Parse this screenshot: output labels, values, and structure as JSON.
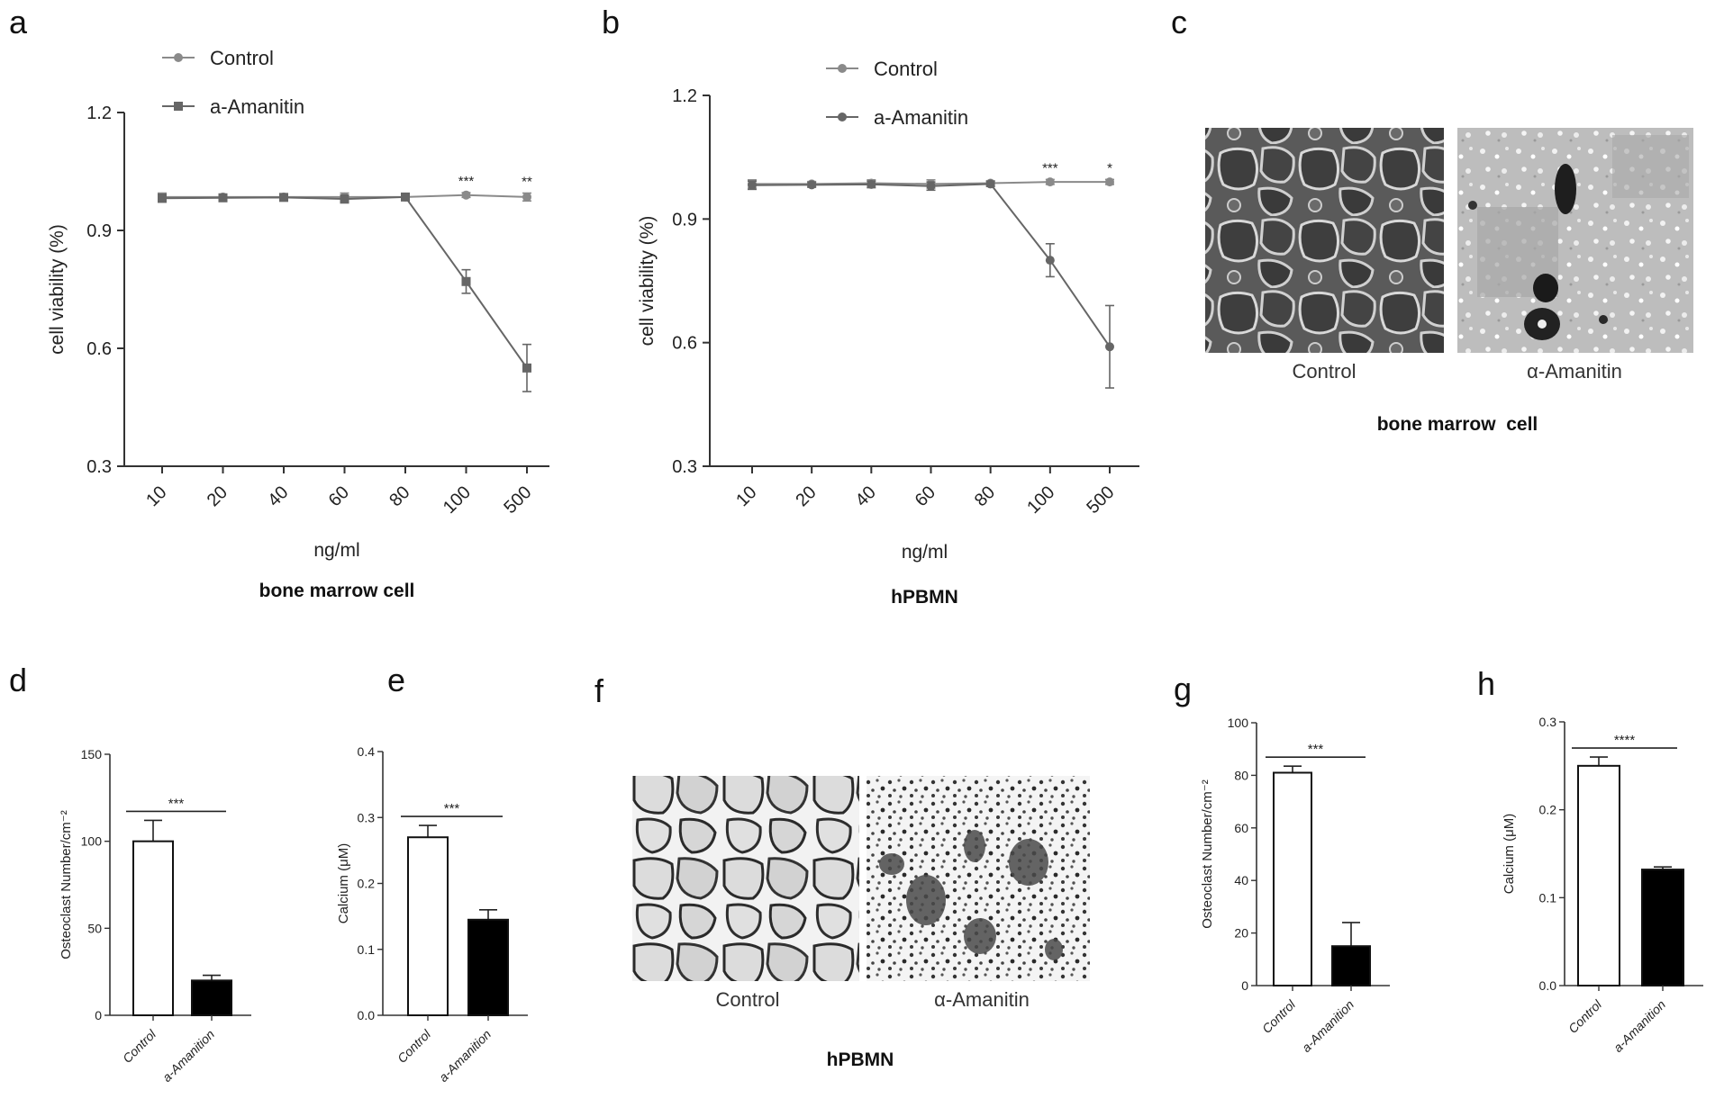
{
  "panels": {
    "a": "a",
    "b": "b",
    "c": "c",
    "d": "d",
    "e": "e",
    "f": "f",
    "g": "g",
    "h": "h"
  },
  "chart_data": [
    {
      "id": "a",
      "type": "line",
      "categories": [
        "10",
        "20",
        "40",
        "60",
        "80",
        "100",
        "500"
      ],
      "series": [
        {
          "name": "Control",
          "values": [
            0.985,
            0.985,
            0.985,
            0.985,
            0.985,
            0.99,
            0.985
          ],
          "errors": [
            0.01,
            0.006,
            0.008,
            0.01,
            0.006,
            0.006,
            0.01
          ],
          "color": "#8a8a8a",
          "marker": "circle"
        },
        {
          "name": "a-Amanitin",
          "values": [
            0.982,
            0.983,
            0.984,
            0.98,
            0.985,
            0.77,
            0.55
          ],
          "errors": [
            0.01,
            0.006,
            0.008,
            0.01,
            0.006,
            0.03,
            0.06
          ],
          "color": "#666666",
          "marker": "square"
        }
      ],
      "yticks": [
        "0.3",
        "0.6",
        "0.9",
        "1.2"
      ],
      "ylim": [
        0.3,
        1.2
      ],
      "ylabel": "cell viability (%)",
      "xlabel": "ng/ml",
      "caption": "bone marrow cell",
      "annotations": [
        {
          "category": "100",
          "text": "***"
        },
        {
          "category": "500",
          "text": "**"
        }
      ]
    },
    {
      "id": "b",
      "type": "line",
      "categories": [
        "10",
        "20",
        "40",
        "60",
        "80",
        "100",
        "500"
      ],
      "series": [
        {
          "name": "Control",
          "values": [
            0.985,
            0.985,
            0.987,
            0.985,
            0.987,
            0.99,
            0.99
          ],
          "errors": [
            0.01,
            0.006,
            0.008,
            0.01,
            0.006,
            0.006,
            0.006
          ],
          "color": "#8a8a8a",
          "marker": "circle"
        },
        {
          "name": "a-Amanitin",
          "values": [
            0.982,
            0.983,
            0.984,
            0.98,
            0.985,
            0.8,
            0.59
          ],
          "errors": [
            0.01,
            0.006,
            0.008,
            0.01,
            0.006,
            0.04,
            0.1
          ],
          "color": "#666666",
          "marker": "circle"
        }
      ],
      "yticks": [
        "0.3",
        "0.6",
        "0.9",
        "1.2"
      ],
      "ylim": [
        0.3,
        1.2
      ],
      "ylabel": "cell viability (%)",
      "xlabel": "ng/ml",
      "caption": "hPBMN",
      "annotations": [
        {
          "category": "100",
          "text": "***"
        },
        {
          "category": "500",
          "text": "*"
        }
      ]
    },
    {
      "id": "d",
      "type": "bar",
      "categories": [
        "Control",
        "a-Amanition"
      ],
      "values": [
        100,
        20
      ],
      "errors": [
        12,
        3
      ],
      "fills": [
        "#ffffff",
        "#000000"
      ],
      "yticks": [
        "0",
        "50",
        "100",
        "150"
      ],
      "ylim": [
        0,
        150
      ],
      "ylabel": "Osteoclast Number/cm⁻²",
      "annotation": "***"
    },
    {
      "id": "e",
      "type": "bar",
      "categories": [
        "Control",
        "a-Amanition"
      ],
      "values": [
        0.27,
        0.145
      ],
      "errors": [
        0.018,
        0.015
      ],
      "fills": [
        "#ffffff",
        "#000000"
      ],
      "yticks": [
        "0.0",
        "0.1",
        "0.2",
        "0.3",
        "0.4"
      ],
      "ylim": [
        0,
        0.4
      ],
      "ylabel": "Calcium (μM)",
      "annotation": "***"
    },
    {
      "id": "g",
      "type": "bar",
      "categories": [
        "Control",
        "a-Amanition"
      ],
      "values": [
        81,
        15
      ],
      "errors": [
        2.5,
        9
      ],
      "fills": [
        "#ffffff",
        "#000000"
      ],
      "yticks": [
        "0",
        "20",
        "40",
        "60",
        "80",
        "100"
      ],
      "ylim": [
        0,
        100
      ],
      "ylabel": "Osteoclast Number/cm⁻²",
      "annotation": "***"
    },
    {
      "id": "h",
      "type": "bar",
      "categories": [
        "Control",
        "a-Amanition"
      ],
      "values": [
        0.25,
        0.132
      ],
      "errors": [
        0.01,
        0.003
      ],
      "fills": [
        "#ffffff",
        "#000000"
      ],
      "yticks": [
        "0.0",
        "0.1",
        "0.2",
        "0.3"
      ],
      "ylim": [
        0,
        0.3
      ],
      "ylabel": "Calcium (μM)",
      "annotation": "****"
    }
  ],
  "micrographs": {
    "c": {
      "left_label": "Control",
      "right_label": "α-Amanitin",
      "caption": "bone marrow  cell"
    },
    "f": {
      "left_label": "Control",
      "right_label": "α-Amanitin",
      "caption": "hPBMN"
    }
  }
}
